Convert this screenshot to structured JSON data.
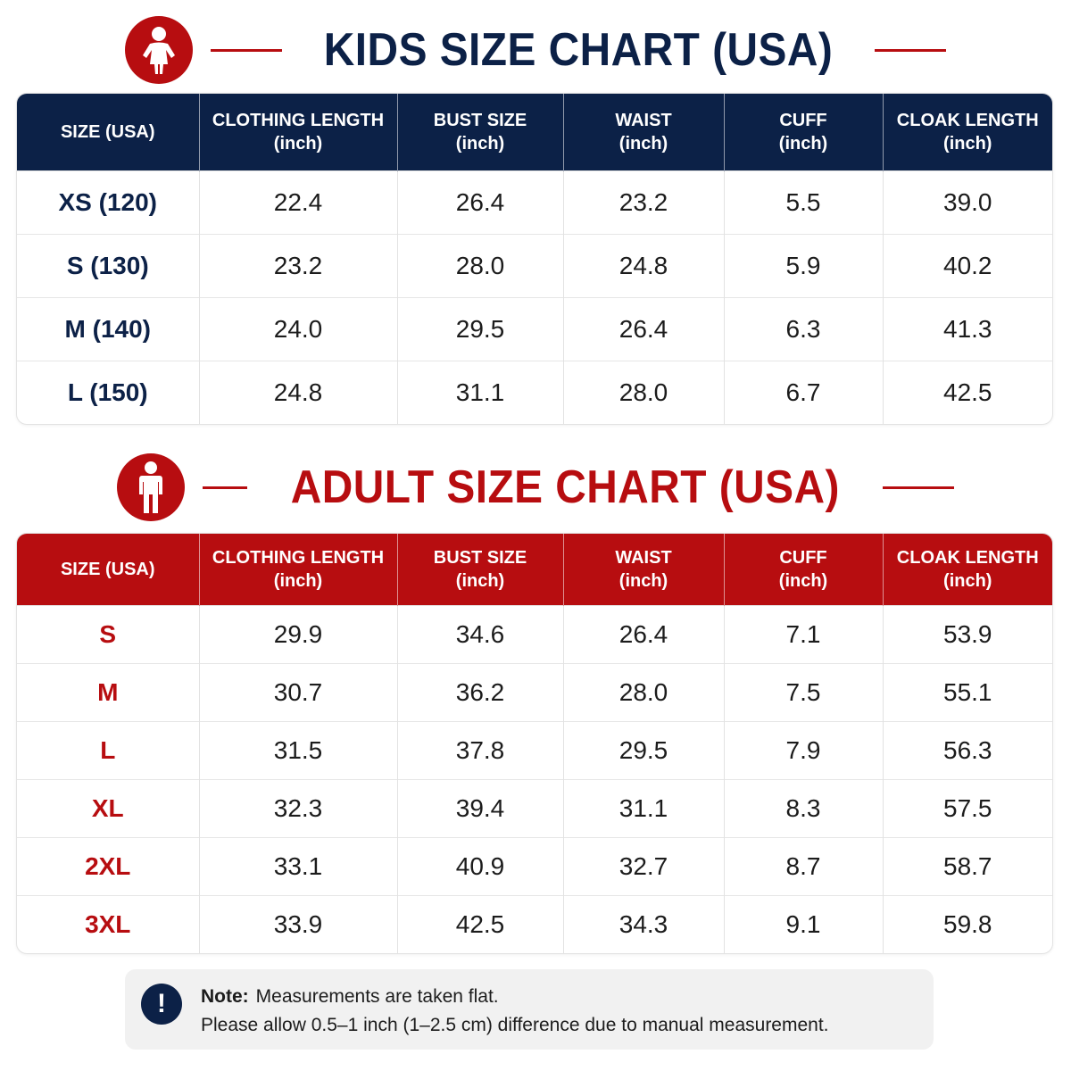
{
  "colors": {
    "navy": "#0c2147",
    "red": "#b70d10"
  },
  "kids": {
    "title": "KIDS SIZE CHART (USA)",
    "icon": "child-icon",
    "headers": [
      {
        "label": "SIZE (USA)",
        "unit": ""
      },
      {
        "label": "CLOTHING LENGTH",
        "unit": "(inch)"
      },
      {
        "label": "BUST SIZE",
        "unit": "(inch)"
      },
      {
        "label": "WAIST",
        "unit": "(inch)"
      },
      {
        "label": "CUFF",
        "unit": "(inch)"
      },
      {
        "label": "CLOAK LENGTH",
        "unit": "(inch)"
      }
    ],
    "rows": [
      [
        "XS (120)",
        "22.4",
        "26.4",
        "23.2",
        "5.5",
        "39.0"
      ],
      [
        "S (130)",
        "23.2",
        "28.0",
        "24.8",
        "5.9",
        "40.2"
      ],
      [
        "M (140)",
        "24.0",
        "29.5",
        "26.4",
        "6.3",
        "41.3"
      ],
      [
        "L (150)",
        "24.8",
        "31.1",
        "28.0",
        "6.7",
        "42.5"
      ]
    ]
  },
  "adult": {
    "title": "ADULT SIZE CHART (USA)",
    "icon": "adult-icon",
    "headers": [
      {
        "label": "SIZE (USA)",
        "unit": ""
      },
      {
        "label": "CLOTHING LENGTH",
        "unit": "(inch)"
      },
      {
        "label": "BUST SIZE",
        "unit": "(inch)"
      },
      {
        "label": "WAIST",
        "unit": "(inch)"
      },
      {
        "label": "CUFF",
        "unit": "(inch)"
      },
      {
        "label": "CLOAK LENGTH",
        "unit": "(inch)"
      }
    ],
    "rows": [
      [
        "S",
        "29.9",
        "34.6",
        "26.4",
        "7.1",
        "53.9"
      ],
      [
        "M",
        "30.7",
        "36.2",
        "28.0",
        "7.5",
        "55.1"
      ],
      [
        "L",
        "31.5",
        "37.8",
        "29.5",
        "7.9",
        "56.3"
      ],
      [
        "XL",
        "32.3",
        "39.4",
        "31.1",
        "8.3",
        "57.5"
      ],
      [
        "2XL",
        "33.1",
        "40.9",
        "32.7",
        "8.7",
        "58.7"
      ],
      [
        "3XL",
        "33.9",
        "42.5",
        "34.3",
        "9.1",
        "59.8"
      ]
    ]
  },
  "note": {
    "icon": "exclamation-icon",
    "icon_glyph": "!",
    "label": "Note:",
    "line1": "Measurements are taken flat.",
    "line2": "Please allow 0.5–1 inch (1–2.5 cm) difference due to manual measurement."
  }
}
